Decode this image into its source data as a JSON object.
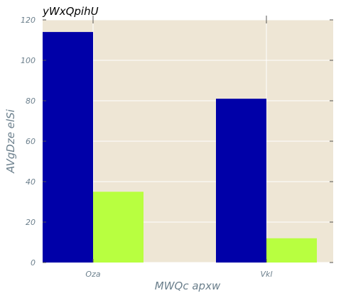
{
  "chart_data": {
    "type": "bar",
    "title": "yWxQpihU",
    "xlabel": "MWQc  apxw",
    "ylabel": "AVgDze  elSi",
    "categories": [
      "Oza",
      "Vkl"
    ],
    "series": [
      {
        "values": [
          114,
          81
        ],
        "color": "#0000a8"
      },
      {
        "values": [
          35,
          12
        ],
        "color": "#b8ff40"
      }
    ],
    "ylim": [
      0,
      120
    ],
    "yticks": [
      0,
      20,
      40,
      60,
      80,
      100,
      120
    ],
    "grid": true,
    "background": "#eee6d5",
    "grid_color": "#ffffff"
  }
}
